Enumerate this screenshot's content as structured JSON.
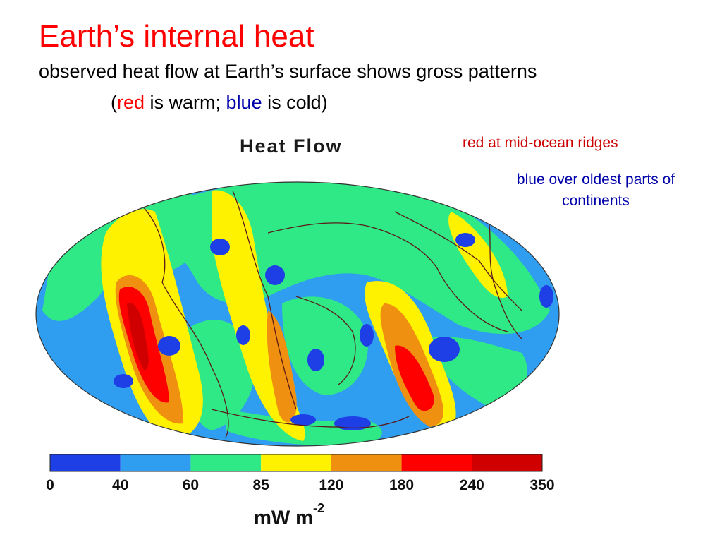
{
  "slide": {
    "title": "Earth’s internal heat",
    "title_color": "#ff0000",
    "subtitle": "observed heat flow at Earth’s surface shows gross patterns",
    "legend_note": {
      "open": "(",
      "red_word": "red",
      "mid": " is warm; ",
      "blue_word": "blue",
      "close": " is cold)"
    }
  },
  "notes": {
    "red": "red at mid-ocean ridges",
    "blue": "blue over oldest parts of continents",
    "red_color": "#cc0000",
    "blue_color": "#0000aa"
  },
  "map": {
    "title": "Heat Flow",
    "unit_base": "mW  m",
    "unit_exp": "-2",
    "colorbar": {
      "ticks": [
        "0",
        "40",
        "60",
        "85",
        "120",
        "180",
        "240",
        "350"
      ],
      "colors": [
        "#1f3fe6",
        "#2f9ef0",
        "#2fe886",
        "#fff200",
        "#f09010",
        "#ff0000",
        "#d00000"
      ]
    }
  }
}
